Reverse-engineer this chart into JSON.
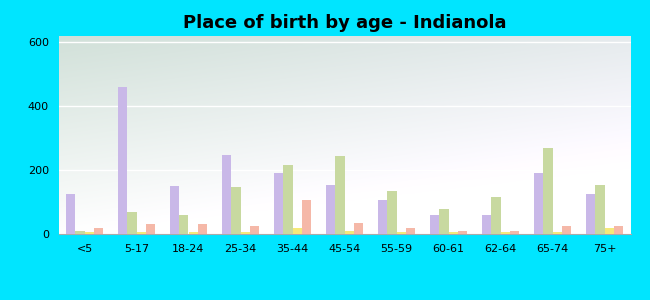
{
  "title": "Place of birth by age - Indianola",
  "categories": [
    "<5",
    "5-17",
    "18-24",
    "25-34",
    "35-44",
    "45-54",
    "55-59",
    "60-61",
    "62-64",
    "65-74",
    "75+"
  ],
  "series": {
    "Born in state of residence": [
      125,
      460,
      150,
      248,
      190,
      155,
      105,
      60,
      58,
      190,
      125
    ],
    "Born in other state": [
      10,
      70,
      60,
      148,
      215,
      245,
      135,
      78,
      115,
      270,
      155
    ],
    "Native, outside of US": [
      5,
      5,
      5,
      5,
      18,
      8,
      5,
      5,
      5,
      5,
      18
    ],
    "Foreign-born": [
      18,
      30,
      32,
      25,
      105,
      35,
      18,
      8,
      8,
      25,
      25
    ]
  },
  "colors": {
    "Born in state of residence": "#c9b8e8",
    "Born in other state": "#c8d9a0",
    "Native, outside of US": "#f5e97a",
    "Foreign-born": "#f5b8a8"
  },
  "ylim": [
    0,
    620
  ],
  "yticks": [
    0,
    200,
    400,
    600
  ],
  "outer_bg": "#00e5ff",
  "title_fontsize": 13,
  "legend_fontsize": 8.5,
  "bar_width": 0.18
}
